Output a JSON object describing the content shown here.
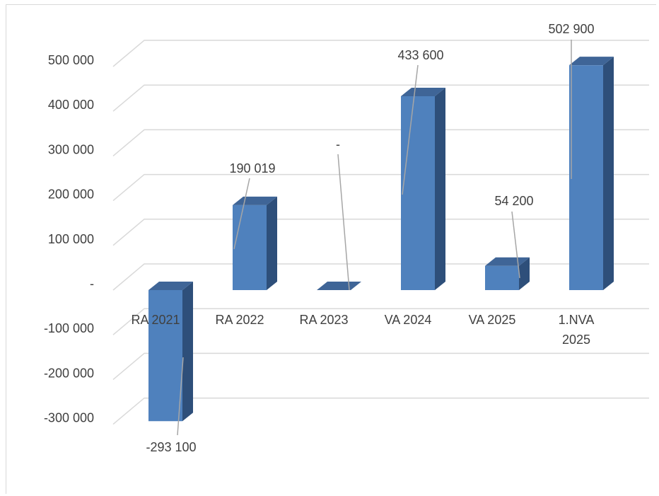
{
  "chart_data": {
    "type": "bar",
    "style": "3d-column",
    "categories": [
      "RA 2021",
      "RA 2022",
      "RA 2023",
      "VA 2024",
      "VA 2025",
      "1.NVA 2025"
    ],
    "category_lines": [
      [
        "RA 2021"
      ],
      [
        "RA 2022"
      ],
      [
        "RA 2023"
      ],
      [
        "VA 2024"
      ],
      [
        "VA 2025"
      ],
      [
        "1.NVA",
        "2025"
      ]
    ],
    "values": [
      -293100,
      190019,
      0,
      433600,
      54200,
      502900
    ],
    "data_labels": [
      "-293 100",
      "190 019",
      "-",
      "433 600",
      "54 200",
      "502 900"
    ],
    "y_ticks": [
      500000,
      400000,
      300000,
      200000,
      100000,
      0,
      -100000,
      -200000,
      -300000
    ],
    "y_tick_labels": [
      "500 000",
      "400 000",
      "300 000",
      "200 000",
      "100 000",
      "-",
      "-100 000",
      "-200 000",
      "-300 000"
    ],
    "ylim": [
      -300000,
      500000
    ],
    "grid": true,
    "legend": "none",
    "colors": {
      "front": "#4f81bd",
      "side": "#2e4f7a",
      "top": "#3f6597",
      "grid": "#d9d9d9",
      "leader": "#a6a6a6",
      "text": "#404040"
    }
  }
}
